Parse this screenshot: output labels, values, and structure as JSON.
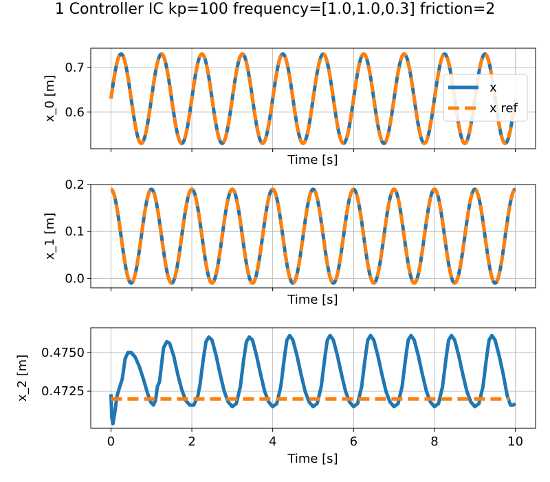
{
  "chart_data": {
    "type": "line",
    "title": "1 Controller IC kp=100 frequency=[1.0,1.0,0.3] friction=2",
    "colors": {
      "x": "#1f77b4",
      "x_ref": "#ff7f0e",
      "grid": "#b0b0b0"
    },
    "legend": {
      "placement": "right",
      "entries": [
        "x",
        "x ref"
      ]
    },
    "grid": true,
    "subplots": [
      {
        "ylabel": "x_0 [m]",
        "xlabel": "Time [s]",
        "xlim": [
          -0.5,
          10.5
        ],
        "ylim": [
          0.518,
          0.743
        ],
        "yticks": [
          0.6,
          0.7
        ],
        "ytick_labels": [
          "0.6",
          "0.7"
        ],
        "xticks": [
          0,
          2,
          4,
          6,
          8,
          10
        ],
        "xtick_labels": [
          "",
          "",
          "",
          "",
          "",
          ""
        ],
        "series": [
          {
            "name": "x",
            "style": "solid",
            "formula": "0.63 + 0.1*sin(2*pi*t)",
            "t_range": [
              0,
              10
            ]
          },
          {
            "name": "x ref",
            "style": "dashed",
            "formula": "0.63 + 0.1*sin(2*pi*t)",
            "t_range": [
              0,
              10
            ]
          }
        ]
      },
      {
        "ylabel": "x_1 [m]",
        "xlabel": "Time [s]",
        "xlim": [
          -0.5,
          10.5
        ],
        "ylim": [
          -0.02,
          0.2
        ],
        "yticks": [
          0.0,
          0.1,
          0.2
        ],
        "ytick_labels": [
          "0.0",
          "0.1",
          "0.2"
        ],
        "xticks": [
          0,
          2,
          4,
          6,
          8,
          10
        ],
        "xtick_labels": [
          "",
          "",
          "",
          "",
          "",
          ""
        ],
        "series": [
          {
            "name": "x",
            "style": "solid",
            "formula": "0.09 + 0.1*cos(2*pi*t)",
            "t_range": [
              0,
              10
            ]
          },
          {
            "name": "x ref",
            "style": "dashed",
            "formula": "0.09 + 0.1*cos(2*pi*t)",
            "t_range": [
              0,
              10
            ]
          }
        ]
      },
      {
        "ylabel": "x_2 [m]",
        "xlabel": "Time [s]",
        "xlim": [
          -0.5,
          10.5
        ],
        "ylim": [
          0.4701,
          0.4766
        ],
        "yticks": [
          0.4725,
          0.475
        ],
        "ytick_labels": [
          "0.4725",
          "0.4750"
        ],
        "xticks": [
          0,
          2,
          4,
          6,
          8,
          10
        ],
        "xtick_labels": [
          "0",
          "2",
          "4",
          "6",
          "8",
          "10"
        ],
        "series": [
          {
            "name": "x",
            "style": "solid",
            "points": [
              [
                0.0,
                0.4723
              ],
              [
                0.02,
                0.4708
              ],
              [
                0.05,
                0.4704
              ],
              [
                0.1,
                0.4712
              ],
              [
                0.15,
                0.4722
              ],
              [
                0.22,
                0.4728
              ],
              [
                0.28,
                0.4733
              ],
              [
                0.35,
                0.4746
              ],
              [
                0.42,
                0.475
              ],
              [
                0.5,
                0.475
              ],
              [
                0.6,
                0.4747
              ],
              [
                0.7,
                0.4741
              ],
              [
                0.8,
                0.4733
              ],
              [
                0.9,
                0.4724
              ],
              [
                0.98,
                0.4718
              ],
              [
                1.05,
                0.4716
              ],
              [
                1.1,
                0.4719
              ],
              [
                1.15,
                0.4728
              ],
              [
                1.2,
                0.4731
              ],
              [
                1.25,
                0.4742
              ],
              [
                1.3,
                0.4753
              ],
              [
                1.38,
                0.4757
              ],
              [
                1.45,
                0.4756
              ],
              [
                1.55,
                0.4748
              ],
              [
                1.65,
                0.4736
              ],
              [
                1.75,
                0.4726
              ],
              [
                1.85,
                0.4719
              ],
              [
                1.95,
                0.4716
              ],
              [
                2.05,
                0.4716
              ],
              [
                2.15,
                0.4722
              ],
              [
                2.2,
                0.4729
              ],
              [
                2.28,
                0.4745
              ],
              [
                2.35,
                0.4757
              ],
              [
                2.42,
                0.476
              ],
              [
                2.5,
                0.4758
              ],
              [
                2.6,
                0.4748
              ],
              [
                2.7,
                0.4736
              ],
              [
                2.8,
                0.4725
              ],
              [
                2.9,
                0.4718
              ],
              [
                3.0,
                0.4715
              ],
              [
                3.1,
                0.4717
              ],
              [
                3.2,
                0.4728
              ],
              [
                3.28,
                0.4745
              ],
              [
                3.35,
                0.4757
              ],
              [
                3.42,
                0.476
              ],
              [
                3.5,
                0.4758
              ],
              [
                3.6,
                0.4748
              ],
              [
                3.7,
                0.4736
              ],
              [
                3.8,
                0.4725
              ],
              [
                3.9,
                0.4718
              ],
              [
                4.0,
                0.4715
              ],
              [
                4.1,
                0.4717
              ],
              [
                4.2,
                0.4728
              ],
              [
                4.28,
                0.4745
              ],
              [
                4.35,
                0.4758
              ],
              [
                4.42,
                0.4761
              ],
              [
                4.5,
                0.4758
              ],
              [
                4.6,
                0.4748
              ],
              [
                4.7,
                0.4736
              ],
              [
                4.8,
                0.4725
              ],
              [
                4.9,
                0.4718
              ],
              [
                5.0,
                0.4715
              ],
              [
                5.1,
                0.4717
              ],
              [
                5.2,
                0.4728
              ],
              [
                5.28,
                0.4745
              ],
              [
                5.35,
                0.4758
              ],
              [
                5.42,
                0.4761
              ],
              [
                5.5,
                0.4758
              ],
              [
                5.6,
                0.4748
              ],
              [
                5.7,
                0.4736
              ],
              [
                5.8,
                0.4725
              ],
              [
                5.9,
                0.4718
              ],
              [
                6.0,
                0.4715
              ],
              [
                6.1,
                0.4717
              ],
              [
                6.2,
                0.4728
              ],
              [
                6.28,
                0.4745
              ],
              [
                6.35,
                0.4758
              ],
              [
                6.42,
                0.4761
              ],
              [
                6.5,
                0.4758
              ],
              [
                6.6,
                0.4748
              ],
              [
                6.7,
                0.4736
              ],
              [
                6.8,
                0.4725
              ],
              [
                6.9,
                0.4718
              ],
              [
                7.0,
                0.4715
              ],
              [
                7.1,
                0.4717
              ],
              [
                7.2,
                0.4728
              ],
              [
                7.28,
                0.4745
              ],
              [
                7.35,
                0.4758
              ],
              [
                7.42,
                0.4761
              ],
              [
                7.5,
                0.4758
              ],
              [
                7.6,
                0.4748
              ],
              [
                7.7,
                0.4736
              ],
              [
                7.8,
                0.4725
              ],
              [
                7.9,
                0.4718
              ],
              [
                8.0,
                0.4715
              ],
              [
                8.1,
                0.4717
              ],
              [
                8.2,
                0.4728
              ],
              [
                8.28,
                0.4745
              ],
              [
                8.35,
                0.4758
              ],
              [
                8.42,
                0.4761
              ],
              [
                8.5,
                0.4758
              ],
              [
                8.6,
                0.4748
              ],
              [
                8.7,
                0.4736
              ],
              [
                8.8,
                0.4725
              ],
              [
                8.9,
                0.4718
              ],
              [
                9.0,
                0.4715
              ],
              [
                9.1,
                0.4717
              ],
              [
                9.2,
                0.4728
              ],
              [
                9.28,
                0.4745
              ],
              [
                9.35,
                0.4758
              ],
              [
                9.42,
                0.4761
              ],
              [
                9.5,
                0.4758
              ],
              [
                9.6,
                0.4748
              ],
              [
                9.7,
                0.4736
              ],
              [
                9.8,
                0.4722
              ],
              [
                9.88,
                0.4716
              ],
              [
                9.95,
                0.4716
              ],
              [
                10.0,
                0.4717
              ]
            ]
          },
          {
            "name": "x ref",
            "style": "dashed",
            "points": [
              [
                0.0,
                0.472
              ],
              [
                9.85,
                0.472
              ]
            ]
          }
        ]
      }
    ]
  }
}
